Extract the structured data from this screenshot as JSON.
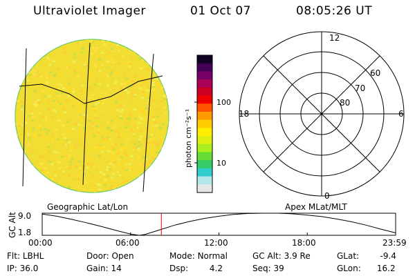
{
  "header": {
    "title": "Ultraviolet Imager",
    "date": "01 Oct 07",
    "time": "08:05:26 UT"
  },
  "colorbar": {
    "label": "photon cm⁻²s⁻¹",
    "ticks": [
      {
        "value": 100,
        "label": "100"
      },
      {
        "value": 10,
        "label": "10"
      }
    ],
    "colors": [
      "#e6e6e6",
      "#b3e6e6",
      "#33cccc",
      "#33cc66",
      "#66dd33",
      "#aaee22",
      "#ddee11",
      "#ffee00",
      "#ffcc00",
      "#ff9900",
      "#ff5500",
      "#ee0000",
      "#cc0022",
      "#aa0055",
      "#770066",
      "#440055",
      "#110022"
    ]
  },
  "left_panel": {
    "caption": "Geographic Lat/Lon",
    "disk_colors": [
      "#ffdd22",
      "#eedd33",
      "#ffe044",
      "#ccdd44",
      "#ffcc33",
      "#eeee55"
    ]
  },
  "polar_panel": {
    "caption": "Apex MLat/MLT",
    "mlt_labels": {
      "top": "12",
      "right": "6",
      "bottom": "0",
      "left": "18"
    },
    "lat_labels": [
      "60",
      "70",
      "80"
    ]
  },
  "chart_data": {
    "type": "line",
    "title": "",
    "ylabel": "GC Alt",
    "yticks": [
      "9.0",
      "1.8"
    ],
    "ylim": [
      1.8,
      9.0
    ],
    "xticks": [
      "00:00",
      "06:00",
      "12:00",
      "18:00",
      "23:59"
    ],
    "xlim_hours": [
      0,
      24
    ],
    "current_time_hours": 8.09,
    "series": [
      {
        "x": [
          0,
          1,
          2,
          3,
          4,
          5,
          6,
          6.6,
          7,
          8,
          9,
          10,
          11,
          12,
          13,
          14,
          15,
          16,
          17,
          18,
          19,
          20,
          21,
          22,
          23,
          23.98
        ],
        "values": [
          8.7,
          8.0,
          7.0,
          5.9,
          4.7,
          3.4,
          2.2,
          1.8,
          2.1,
          3.6,
          5.1,
          6.3,
          7.3,
          8.0,
          8.6,
          8.9,
          9.0,
          9.0,
          8.8,
          8.4,
          7.9,
          7.1,
          6.2,
          5.1,
          3.8,
          2.6
        ]
      }
    ]
  },
  "status": {
    "flt_label": "Flt:",
    "flt_value": "LBHL",
    "ip_label": "IP:",
    "ip_value": "36.0",
    "door_label": "Door:",
    "door_value": "Open",
    "gain_label": "Gain:",
    "gain_value": "14",
    "mode_label": "Mode:",
    "mode_value": "Normal",
    "dsp_label": "Dsp:",
    "dsp_value": "4.2",
    "gcalt_label": "GC Alt:",
    "gcalt_value": "3.9 Re",
    "seq_label": "Seq:",
    "seq_value": "39",
    "glat_label": "GLat:",
    "glat_value": "-9.4",
    "glon_label": "GLon:",
    "glon_value": "16.2"
  }
}
